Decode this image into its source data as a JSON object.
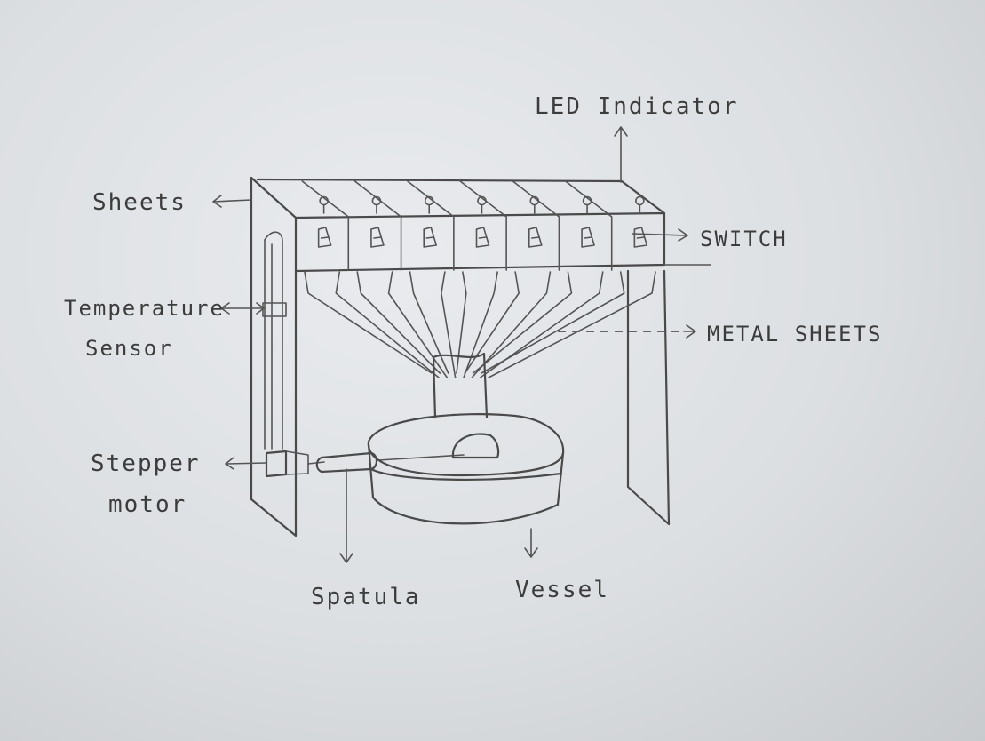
{
  "labels": {
    "led_indicator": "LED Indicator",
    "sheets": "Sheets",
    "switch": "SWITCH",
    "temperature_line1": "Temperature",
    "temperature_line2": "Sensor",
    "metal_sheets": "METAL SHEETS",
    "stepper_line1": "Stepper",
    "stepper_line2": "motor",
    "spatula": "Spatula",
    "vessel": "Vessel"
  },
  "module_count": 7,
  "ink_color": "#4a4a4a",
  "paper_color": "#e6e8eb"
}
